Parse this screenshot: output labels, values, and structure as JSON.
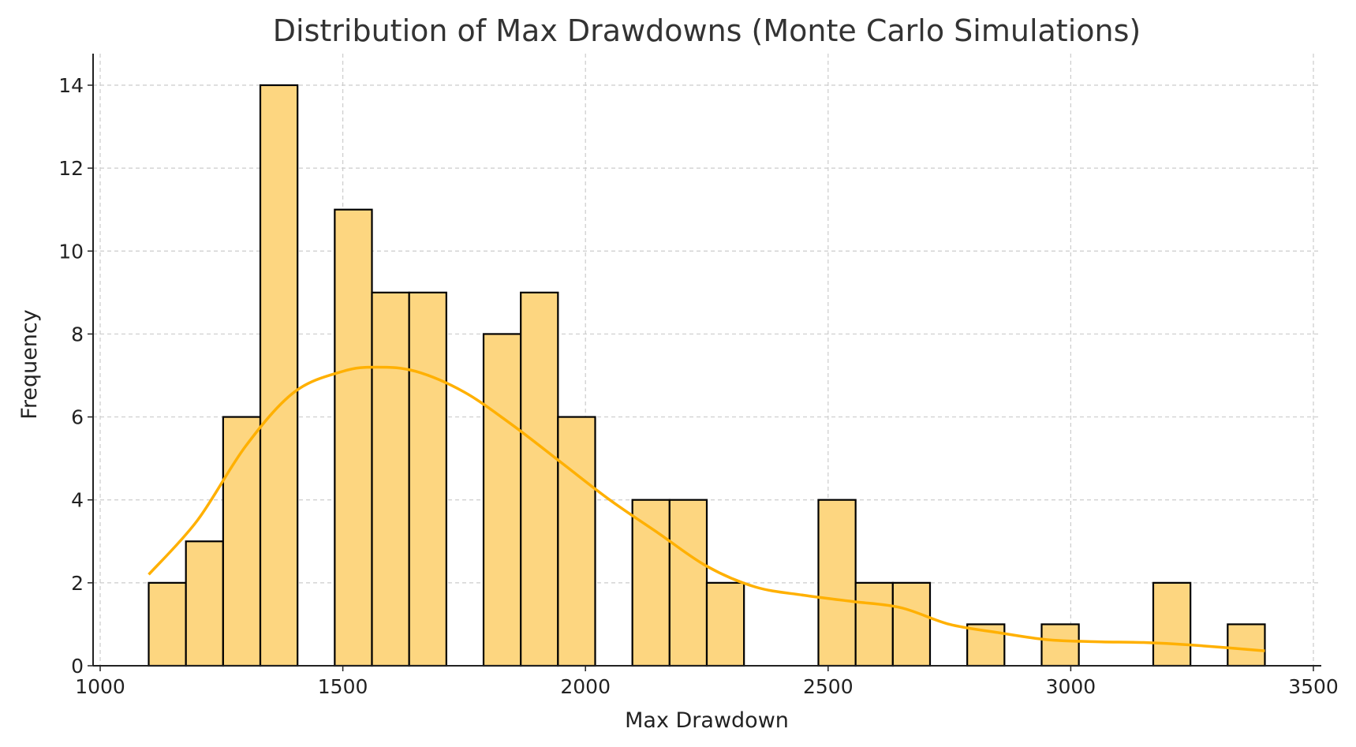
{
  "chart_data": {
    "type": "bar",
    "subtype": "histogram-with-kde",
    "title": "Distribution of Max Drawdowns (Monte Carlo Simulations)",
    "xlabel": "Max Drawdown",
    "ylabel": "Frequency",
    "xlim": [
      1000,
      3500
    ],
    "ylim": [
      0,
      14.7
    ],
    "xticks": [
      "1000",
      "1500",
      "2000",
      "2500",
      "3000",
      "3500"
    ],
    "yticks": [
      "0",
      "2",
      "4",
      "6",
      "8",
      "10",
      "12",
      "14"
    ],
    "grid": true,
    "bin_start": 1100,
    "bin_end": 3400,
    "counts": [
      2,
      3,
      6,
      14,
      0,
      11,
      9,
      9,
      0,
      8,
      9,
      6,
      0,
      4,
      4,
      2,
      0,
      0,
      4,
      2,
      2,
      0,
      1,
      0,
      1,
      0,
      0,
      2,
      0,
      1
    ],
    "kde": {
      "x": [
        1100,
        1200,
        1300,
        1400,
        1500,
        1570,
        1650,
        1750,
        1850,
        1950,
        2050,
        2150,
        2250,
        2350,
        2450,
        2550,
        2650,
        2750,
        2850,
        2950,
        3050,
        3150,
        3250,
        3400
      ],
      "y": [
        2.2,
        3.5,
        5.3,
        6.6,
        7.1,
        7.2,
        7.1,
        6.6,
        5.8,
        4.9,
        4.0,
        3.2,
        2.4,
        1.9,
        1.7,
        1.55,
        1.4,
        1.0,
        0.8,
        0.63,
        0.58,
        0.56,
        0.5,
        0.36
      ]
    },
    "colors": {
      "bar_fill": "#FDD680",
      "bar_edge": "#000000",
      "kde_line": "#FFB000",
      "grid": "#cccccc"
    }
  }
}
